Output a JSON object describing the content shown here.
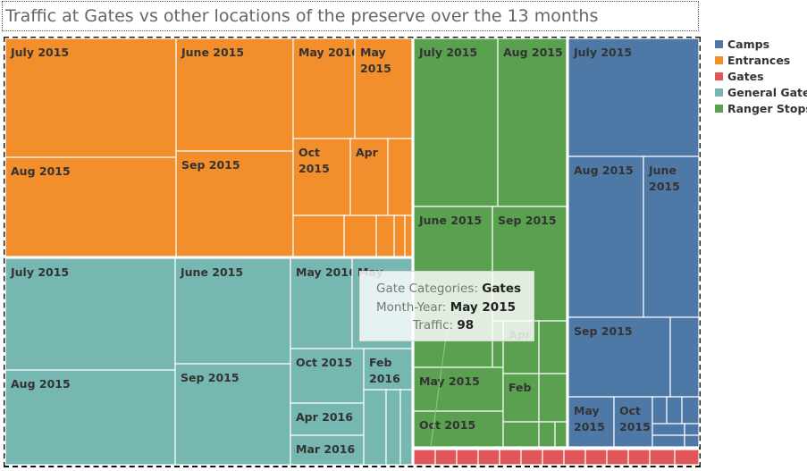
{
  "chart_data": {
    "type": "treemap",
    "title": "Traffic at Gates vs other locations of the preserve over the 13 months",
    "legend": {
      "placement": "right",
      "items": [
        {
          "name": "Camps",
          "color": "#4e79a7"
        },
        {
          "name": "Entrances",
          "color": "#f28e2b"
        },
        {
          "name": "Gates",
          "color": "#e15759"
        },
        {
          "name": "General Gates",
          "color": "#76b7b2"
        },
        {
          "name": "Ranger Stops",
          "color": "#59a14f"
        }
      ]
    },
    "groups": [
      {
        "name": "Entrances",
        "color": "#f28e2b",
        "cells": [
          {
            "label": "July 2015"
          },
          {
            "label": "Aug 2015"
          },
          {
            "label": "June 2015"
          },
          {
            "label": "Sep 2015"
          },
          {
            "label": "May 2016"
          },
          {
            "label": "May 2015"
          },
          {
            "label": "Oct 2015"
          },
          {
            "label": "Apr"
          },
          {
            "label": ""
          },
          {
            "label": ""
          },
          {
            "label": ""
          },
          {
            "label": ""
          },
          {
            "label": ""
          },
          {
            "label": ""
          }
        ]
      },
      {
        "name": "General Gates",
        "color": "#76b7b2",
        "cells": [
          {
            "label": "July 2015"
          },
          {
            "label": "Aug 2015"
          },
          {
            "label": "June 2015"
          },
          {
            "label": "Sep 2015"
          },
          {
            "label": "May 2016"
          },
          {
            "label": "May"
          },
          {
            "label": "Oct 2015"
          },
          {
            "label": "Feb 2016"
          },
          {
            "label": "Apr 2016"
          },
          {
            "label": "Mar 2016"
          },
          {
            "label": ""
          },
          {
            "label": ""
          },
          {
            "label": ""
          }
        ]
      },
      {
        "name": "Ranger Stops",
        "color": "#59a14f",
        "cells": [
          {
            "label": "July 2015"
          },
          {
            "label": "Aug 2015"
          },
          {
            "label": "June 2015"
          },
          {
            "label": "Sep 2015"
          },
          {
            "label": "May 2015"
          },
          {
            "label": "Oct 2015"
          },
          {
            "label": "Apr"
          },
          {
            "label": "Feb"
          },
          {
            "label": ""
          },
          {
            "label": ""
          },
          {
            "label": ""
          },
          {
            "label": ""
          },
          {
            "label": ""
          },
          {
            "label": ""
          }
        ]
      },
      {
        "name": "Camps",
        "color": "#4e79a7",
        "cells": [
          {
            "label": "July 2015"
          },
          {
            "label": "Aug 2015"
          },
          {
            "label": "June 2015"
          },
          {
            "label": "Sep 2015"
          },
          {
            "label": "May 2015"
          },
          {
            "label": "Oct 2015"
          },
          {
            "label": ""
          },
          {
            "label": ""
          },
          {
            "label": ""
          },
          {
            "label": ""
          },
          {
            "label": ""
          },
          {
            "label": ""
          },
          {
            "label": ""
          },
          {
            "label": ""
          }
        ]
      },
      {
        "name": "Gates",
        "color": "#e15759",
        "cells": [
          {
            "label": ""
          },
          {
            "label": ""
          },
          {
            "label": ""
          },
          {
            "label": ""
          },
          {
            "label": ""
          },
          {
            "label": ""
          },
          {
            "label": ""
          },
          {
            "label": ""
          },
          {
            "label": ""
          },
          {
            "label": ""
          },
          {
            "label": ""
          },
          {
            "label": ""
          },
          {
            "label": ""
          }
        ]
      }
    ],
    "tooltip": {
      "rows": [
        {
          "key": "Gate Categories:",
          "value": "Gates"
        },
        {
          "key": "Month-Year:",
          "value": "May 2015"
        },
        {
          "key": "Traffic:",
          "value": "98"
        }
      ]
    }
  }
}
